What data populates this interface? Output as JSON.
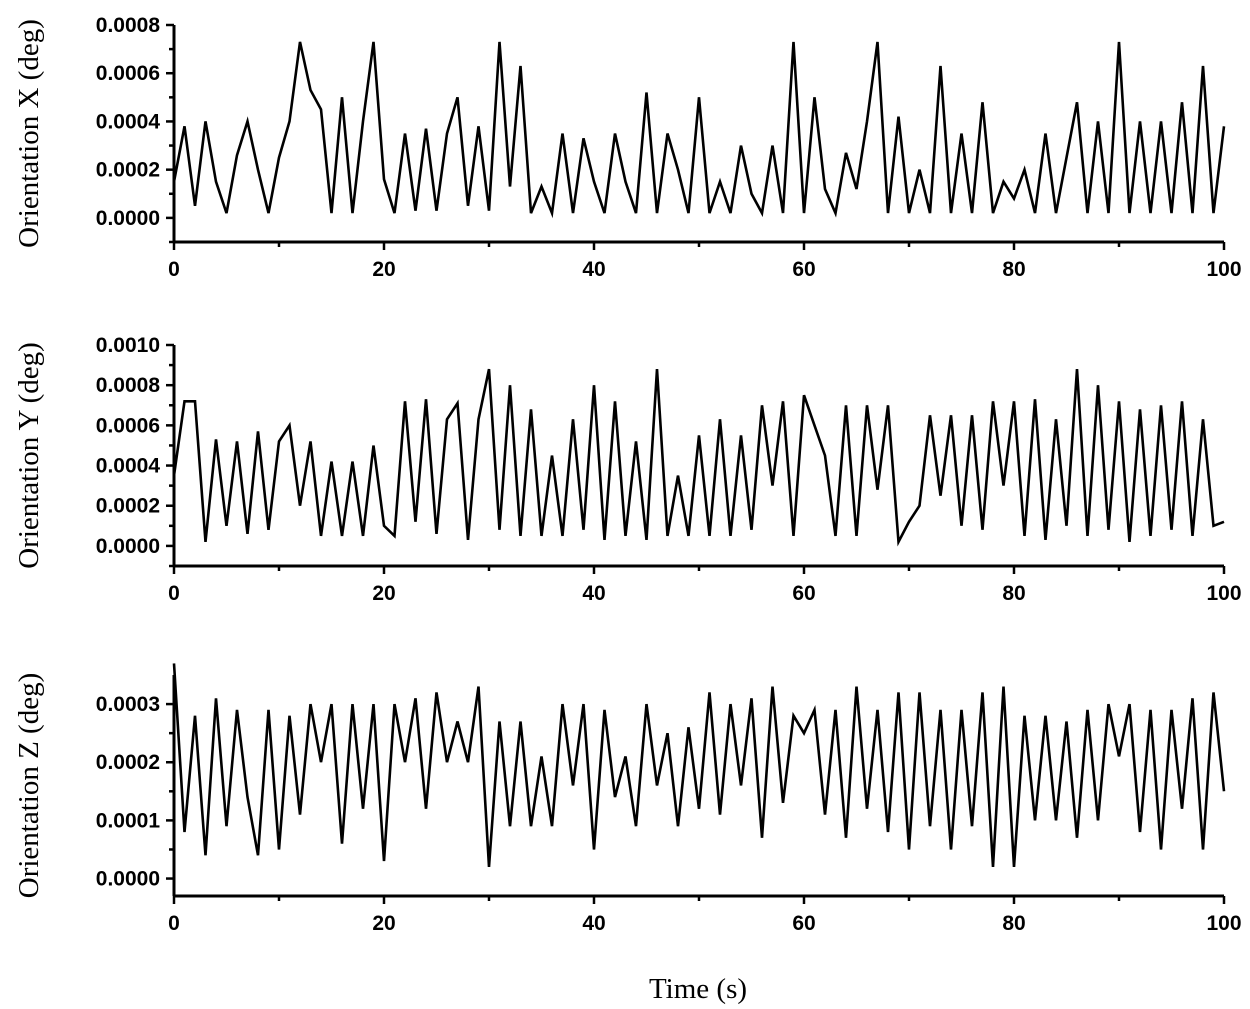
{
  "figure": {
    "xlabel": "Time (s)"
  },
  "chart_data": [
    {
      "type": "line",
      "ylabel": "Orientation X (deg)",
      "xlim": [
        0,
        100
      ],
      "ylim": [
        -0.0001,
        0.0008
      ],
      "x_ticks": [
        0,
        20,
        40,
        60,
        80,
        100
      ],
      "y_ticks": [
        "0.0000",
        "0.0002",
        "0.0004",
        "0.0006",
        "0.0008"
      ],
      "y_tick_values": [
        0,
        0.0002,
        0.0004,
        0.0006,
        0.0008
      ],
      "grid": false,
      "series": [
        {
          "x": [
            0,
            1,
            2,
            3,
            4,
            5,
            6,
            7,
            8,
            9,
            10,
            11,
            12,
            13,
            14,
            15,
            16,
            17,
            18,
            19,
            20,
            21,
            22,
            23,
            24,
            25,
            26,
            27,
            28,
            29,
            30,
            31,
            32,
            33,
            34,
            35,
            36,
            37,
            38,
            39,
            40,
            41,
            42,
            43,
            44,
            45,
            46,
            47,
            48,
            49,
            50,
            51,
            52,
            53,
            54,
            55,
            56,
            57,
            58,
            59,
            60,
            61,
            62,
            63,
            64,
            65,
            66,
            67,
            68,
            69,
            70,
            71,
            72,
            73,
            74,
            75,
            76,
            77,
            78,
            79,
            80,
            81,
            82,
            83,
            84,
            85,
            86,
            87,
            88,
            89,
            90,
            91,
            92,
            93,
            94,
            95,
            96,
            97,
            98,
            99,
            100
          ],
          "values": [
            0.00015,
            0.00038,
            5e-05,
            0.0004,
            0.00015,
            2e-05,
            0.00026,
            0.0004,
            0.0002,
            2e-05,
            0.00025,
            0.0004,
            0.00073,
            0.00053,
            0.00045,
            2e-05,
            0.0005,
            2e-05,
            0.0004,
            0.00073,
            0.00016,
            2e-05,
            0.00035,
            3e-05,
            0.00037,
            3e-05,
            0.00035,
            0.0005,
            5e-05,
            0.00038,
            3e-05,
            0.00073,
            0.00013,
            0.00063,
            2e-05,
            0.00013,
            2e-05,
            0.00035,
            2e-05,
            0.00033,
            0.00015,
            2e-05,
            0.00035,
            0.00015,
            2e-05,
            0.00052,
            2e-05,
            0.00035,
            0.0002,
            2e-05,
            0.0005,
            2e-05,
            0.00015,
            2e-05,
            0.0003,
            0.0001,
            2e-05,
            0.0003,
            2e-05,
            0.00073,
            2e-05,
            0.0005,
            0.00012,
            2e-05,
            0.00027,
            0.00012,
            0.0004,
            0.00073,
            2e-05,
            0.00042,
            2e-05,
            0.0002,
            2e-05,
            0.00063,
            2e-05,
            0.00035,
            2e-05,
            0.00048,
            2e-05,
            0.00015,
            8e-05,
            0.0002,
            2e-05,
            0.00035,
            2e-05,
            0.00025,
            0.00048,
            2e-05,
            0.0004,
            2e-05,
            0.00073,
            2e-05,
            0.0004,
            2e-05,
            0.0004,
            2e-05,
            0.00048,
            2e-05,
            0.00063,
            2e-05,
            0.00038
          ]
        }
      ]
    },
    {
      "type": "line",
      "ylabel": "Orientation Y (deg)",
      "xlim": [
        0,
        100
      ],
      "ylim": [
        -0.0001,
        0.001
      ],
      "x_ticks": [
        0,
        20,
        40,
        60,
        80,
        100
      ],
      "y_ticks": [
        "0.0000",
        "0.0002",
        "0.0004",
        "0.0006",
        "0.0008",
        "0.0010"
      ],
      "y_tick_values": [
        0,
        0.0002,
        0.0004,
        0.0006,
        0.0008,
        0.001
      ],
      "grid": false,
      "series": [
        {
          "x": [
            0,
            1,
            2,
            3,
            4,
            5,
            6,
            7,
            8,
            9,
            10,
            11,
            12,
            13,
            14,
            15,
            16,
            17,
            18,
            19,
            20,
            21,
            22,
            23,
            24,
            25,
            26,
            27,
            28,
            29,
            30,
            31,
            32,
            33,
            34,
            35,
            36,
            37,
            38,
            39,
            40,
            41,
            42,
            43,
            44,
            45,
            46,
            47,
            48,
            49,
            50,
            51,
            52,
            53,
            54,
            55,
            56,
            57,
            58,
            59,
            60,
            61,
            62,
            63,
            64,
            65,
            66,
            67,
            68,
            69,
            70,
            71,
            72,
            73,
            74,
            75,
            76,
            77,
            78,
            79,
            80,
            81,
            82,
            83,
            84,
            85,
            86,
            87,
            88,
            89,
            90,
            91,
            92,
            93,
            94,
            95,
            96,
            97,
            98,
            99,
            100
          ],
          "values": [
            0.00035,
            0.00072,
            0.00072,
            2e-05,
            0.00053,
            0.0001,
            0.00052,
            6e-05,
            0.00057,
            8e-05,
            0.00052,
            0.0006,
            0.0002,
            0.00052,
            5e-05,
            0.00042,
            5e-05,
            0.00042,
            5e-05,
            0.0005,
            0.0001,
            5e-05,
            0.00072,
            0.00012,
            0.00073,
            6e-05,
            0.00063,
            0.00071,
            3e-05,
            0.00063,
            0.00088,
            8e-05,
            0.0008,
            5e-05,
            0.00068,
            5e-05,
            0.00045,
            5e-05,
            0.00063,
            8e-05,
            0.0008,
            3e-05,
            0.00072,
            5e-05,
            0.00052,
            3e-05,
            0.00088,
            5e-05,
            0.00035,
            5e-05,
            0.00055,
            5e-05,
            0.00063,
            5e-05,
            0.00055,
            8e-05,
            0.0007,
            0.0003,
            0.00072,
            5e-05,
            0.00075,
            0.0006,
            0.00045,
            5e-05,
            0.0007,
            5e-05,
            0.0007,
            0.00028,
            0.0007,
            2e-05,
            0.00012,
            0.0002,
            0.00065,
            0.00025,
            0.00065,
            0.0001,
            0.00065,
            8e-05,
            0.00072,
            0.0003,
            0.00072,
            5e-05,
            0.00073,
            3e-05,
            0.00063,
            0.0001,
            0.00088,
            5e-05,
            0.0008,
            8e-05,
            0.00072,
            2e-05,
            0.00068,
            5e-05,
            0.0007,
            8e-05,
            0.00072,
            5e-05,
            0.00063,
            0.0001,
            0.00012
          ]
        }
      ]
    },
    {
      "type": "line",
      "ylabel": "Orientation Z (deg)",
      "xlim": [
        0,
        100
      ],
      "ylim": [
        -3e-05,
        0.00035
      ],
      "x_ticks": [
        0,
        20,
        40,
        60,
        80,
        100
      ],
      "y_ticks": [
        "0.0000",
        "0.0001",
        "0.0002",
        "0.0003"
      ],
      "y_tick_values": [
        0,
        0.0001,
        0.0002,
        0.0003
      ],
      "grid": false,
      "series": [
        {
          "x": [
            0,
            1,
            2,
            3,
            4,
            5,
            6,
            7,
            8,
            9,
            10,
            11,
            12,
            13,
            14,
            15,
            16,
            17,
            18,
            19,
            20,
            21,
            22,
            23,
            24,
            25,
            26,
            27,
            28,
            29,
            30,
            31,
            32,
            33,
            34,
            35,
            36,
            37,
            38,
            39,
            40,
            41,
            42,
            43,
            44,
            45,
            46,
            47,
            48,
            49,
            50,
            51,
            52,
            53,
            54,
            55,
            56,
            57,
            58,
            59,
            60,
            61,
            62,
            63,
            64,
            65,
            66,
            67,
            68,
            69,
            70,
            71,
            72,
            73,
            74,
            75,
            76,
            77,
            78,
            79,
            80,
            81,
            82,
            83,
            84,
            85,
            86,
            87,
            88,
            89,
            90,
            91,
            92,
            93,
            94,
            95,
            96,
            97,
            98,
            99,
            100
          ],
          "values": [
            0.00037,
            8e-05,
            0.00028,
            4e-05,
            0.00031,
            9e-05,
            0.00029,
            0.00014,
            4e-05,
            0.00029,
            5e-05,
            0.00028,
            0.00011,
            0.0003,
            0.0002,
            0.0003,
            6e-05,
            0.0003,
            0.00012,
            0.0003,
            3e-05,
            0.0003,
            0.0002,
            0.00031,
            0.00012,
            0.00032,
            0.0002,
            0.00027,
            0.0002,
            0.00033,
            2e-05,
            0.00027,
            9e-05,
            0.00027,
            9e-05,
            0.00021,
            9e-05,
            0.0003,
            0.00016,
            0.0003,
            5e-05,
            0.00029,
            0.00014,
            0.00021,
            9e-05,
            0.0003,
            0.00016,
            0.00025,
            9e-05,
            0.00026,
            0.00012,
            0.00032,
            0.00011,
            0.0003,
            0.00016,
            0.00031,
            7e-05,
            0.00033,
            0.00013,
            0.00028,
            0.00025,
            0.00029,
            0.00011,
            0.00029,
            7e-05,
            0.00033,
            0.00012,
            0.00029,
            8e-05,
            0.00032,
            5e-05,
            0.00032,
            9e-05,
            0.00029,
            5e-05,
            0.00029,
            9e-05,
            0.00032,
            2e-05,
            0.00033,
            2e-05,
            0.00028,
            0.0001,
            0.00028,
            0.0001,
            0.00027,
            7e-05,
            0.00029,
            0.0001,
            0.0003,
            0.00021,
            0.0003,
            8e-05,
            0.00029,
            5e-05,
            0.00029,
            0.00012,
            0.00031,
            5e-05,
            0.00032,
            0.00015
          ]
        }
      ]
    }
  ]
}
